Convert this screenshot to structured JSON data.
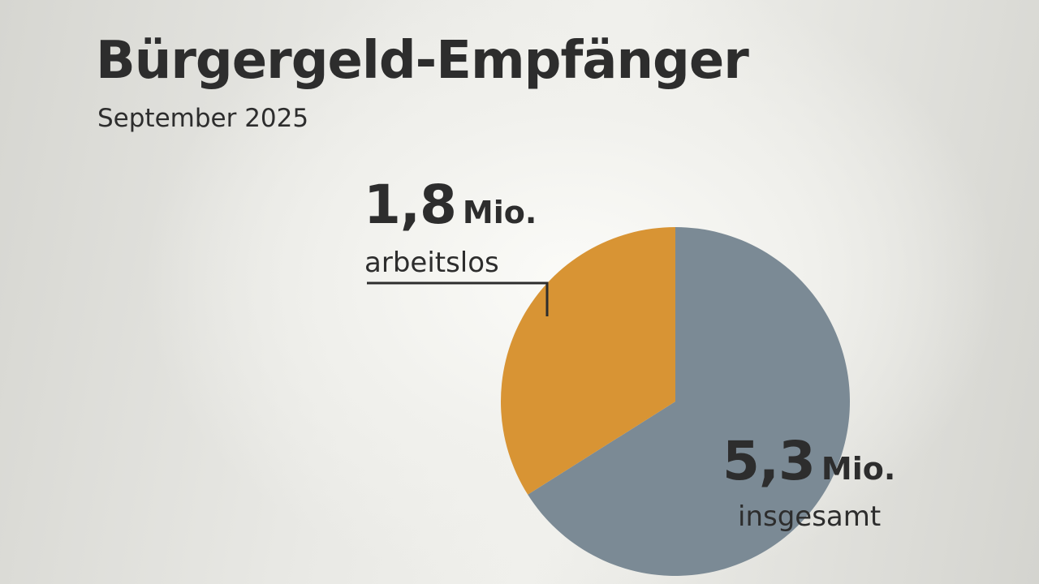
{
  "title": "Bürgergeld-Empfänger",
  "subtitle": "September 2025",
  "colors": {
    "arbeitslos": "#d89434",
    "rest": "#7b8a95",
    "leader": "#2d2d2d"
  },
  "chart_data": {
    "type": "pie",
    "title": "Bürgergeld-Empfänger",
    "subtitle": "September 2025",
    "total": {
      "value": 5.3,
      "unit": "Mio.",
      "label": "insgesamt"
    },
    "slices": [
      {
        "label": "arbeitslos",
        "value": 1.8,
        "unit": "Mio."
      },
      {
        "label": "",
        "value": 3.5,
        "unit": "Mio."
      }
    ]
  },
  "labels": {
    "arbeitslos_value": "1,8",
    "arbeitslos_unit": "Mio.",
    "arbeitslos_desc": "arbeitslos",
    "insgesamt_value": "5,3",
    "insgesamt_unit": "Mio.",
    "insgesamt_desc": "insgesamt"
  }
}
